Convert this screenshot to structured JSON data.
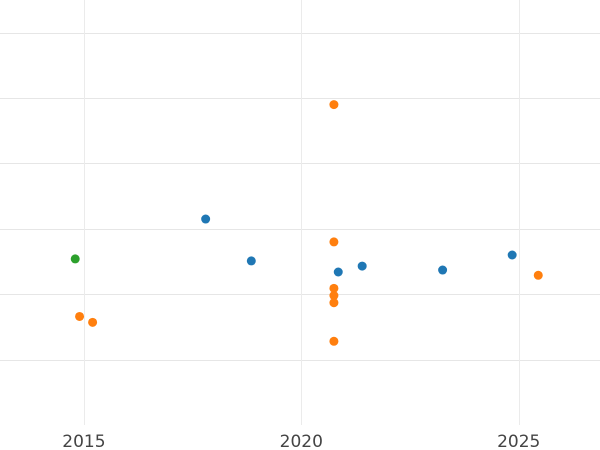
{
  "chart_data": {
    "type": "scatter",
    "title": "",
    "xlabel": "",
    "ylabel": "",
    "xlim": [
      2013.07,
      2026.87
    ],
    "ylim": [
      -3.0,
      3.5
    ],
    "xticks": [
      2015,
      2020,
      2025
    ],
    "xtick_labels": [
      "2015",
      "2020",
      "2025"
    ],
    "yticks": [
      -2,
      -1,
      0,
      1,
      2,
      3
    ],
    "ytick_labels": [],
    "grid": true,
    "legend": "none",
    "series": [
      {
        "color": "#1f77b4",
        "points": [
          {
            "x": 2017.8,
            "y": 0.15
          },
          {
            "x": 2018.85,
            "y": -0.49
          },
          {
            "x": 2020.85,
            "y": -0.66
          },
          {
            "x": 2021.4,
            "y": -0.57
          },
          {
            "x": 2023.25,
            "y": -0.63
          },
          {
            "x": 2024.85,
            "y": -0.4
          }
        ]
      },
      {
        "color": "#ff7f0e",
        "points": [
          {
            "x": 2014.9,
            "y": -1.34
          },
          {
            "x": 2015.2,
            "y": -1.43
          },
          {
            "x": 2020.75,
            "y": 1.9
          },
          {
            "x": 2020.75,
            "y": -0.2
          },
          {
            "x": 2020.75,
            "y": -0.91
          },
          {
            "x": 2020.75,
            "y": -1.02
          },
          {
            "x": 2020.75,
            "y": -1.13
          },
          {
            "x": 2020.75,
            "y": -1.72
          },
          {
            "x": 2025.45,
            "y": -0.71
          }
        ]
      },
      {
        "color": "#2ca02c",
        "points": [
          {
            "x": 2014.8,
            "y": -0.46
          }
        ]
      }
    ]
  }
}
